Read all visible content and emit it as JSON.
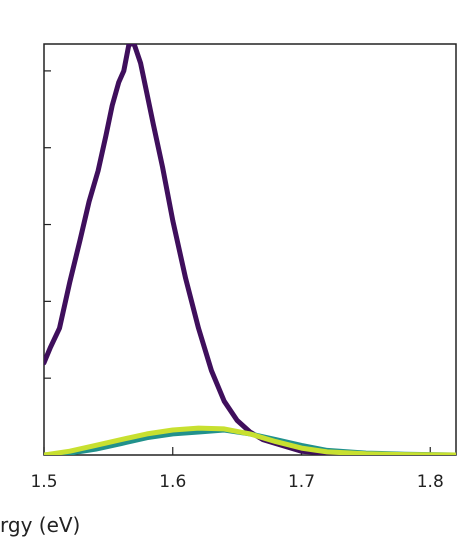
{
  "chart_data": {
    "type": "line",
    "title": "",
    "xlabel": "rgy (eV)",
    "ylabel": "",
    "xlim": [
      1.5,
      1.82
    ],
    "ylim": [
      0,
      1.07
    ],
    "x_ticks": [
      1.5,
      1.6,
      1.7,
      1.8
    ],
    "x_tick_labels": [
      "1.5",
      "1.6",
      "1.7",
      "1.8"
    ],
    "y_ticks": [
      0.2,
      0.4,
      0.6,
      0.8,
      1.0
    ],
    "grid": false,
    "legend": "none",
    "series": [
      {
        "color": "#3f0f5c",
        "x": [
          1.5,
          1.505,
          1.512,
          1.52,
          1.528,
          1.535,
          1.542,
          1.548,
          1.553,
          1.558,
          1.562,
          1.566,
          1.57,
          1.575,
          1.58,
          1.585,
          1.592,
          1.6,
          1.61,
          1.62,
          1.63,
          1.64,
          1.65,
          1.66,
          1.67,
          1.68,
          1.69,
          1.7,
          1.72,
          1.75,
          1.8,
          1.82
        ],
        "y": [
          0.24,
          0.28,
          0.33,
          0.45,
          0.56,
          0.66,
          0.74,
          0.83,
          0.91,
          0.97,
          1.0,
          1.07,
          1.07,
          1.02,
          0.94,
          0.86,
          0.75,
          0.61,
          0.46,
          0.33,
          0.22,
          0.14,
          0.09,
          0.06,
          0.04,
          0.03,
          0.02,
          0.01,
          0.005,
          0.002,
          0.0,
          0.0
        ]
      },
      {
        "color": "#21918c",
        "x": [
          1.5,
          1.52,
          1.54,
          1.56,
          1.58,
          1.6,
          1.62,
          1.64,
          1.66,
          1.68,
          1.7,
          1.72,
          1.75,
          1.78,
          1.82
        ],
        "y": [
          0.0,
          0.005,
          0.015,
          0.03,
          0.045,
          0.055,
          0.06,
          0.065,
          0.055,
          0.04,
          0.025,
          0.012,
          0.005,
          0.002,
          0.0
        ]
      },
      {
        "color": "#c8e030",
        "x": [
          1.5,
          1.52,
          1.54,
          1.56,
          1.58,
          1.6,
          1.62,
          1.64,
          1.66,
          1.68,
          1.7,
          1.72,
          1.75,
          1.78,
          1.82
        ],
        "y": [
          0.0,
          0.01,
          0.025,
          0.04,
          0.055,
          0.065,
          0.07,
          0.068,
          0.055,
          0.035,
          0.018,
          0.008,
          0.003,
          0.001,
          0.0
        ]
      }
    ]
  }
}
